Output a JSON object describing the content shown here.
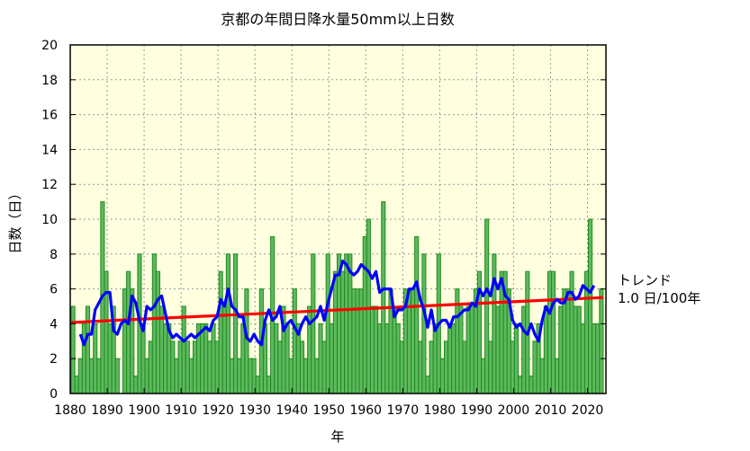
{
  "chart_data": {
    "type": "bar",
    "title": "京都の年間日降水量50mm以上日数",
    "xlabel": "年",
    "ylabel": "日数（日）",
    "xlim": [
      1880,
      2025
    ],
    "ylim": [
      0,
      20
    ],
    "xticks": [
      "1880",
      "1890",
      "1900",
      "1910",
      "1920",
      "1930",
      "1940",
      "1950",
      "1960",
      "1970",
      "1980",
      "1990",
      "2000",
      "2010",
      "2020"
    ],
    "yticks": [
      "0",
      "2",
      "4",
      "6",
      "8",
      "10",
      "12",
      "14",
      "16",
      "18",
      "20"
    ],
    "grid": true,
    "first_year": 1881,
    "values": [
      5,
      1,
      2,
      4,
      5,
      2,
      4,
      2,
      11,
      7,
      4,
      5,
      2,
      0,
      6,
      7,
      6,
      1,
      8,
      4,
      2,
      3,
      8,
      7,
      5,
      4,
      4,
      3,
      2,
      3,
      5,
      3,
      2,
      3,
      4,
      4,
      4,
      3,
      4,
      3,
      7,
      5,
      8,
      2,
      8,
      2,
      4,
      6,
      2,
      2,
      1,
      6,
      4,
      1,
      9,
      4,
      3,
      5,
      4,
      2,
      6,
      4,
      3,
      2,
      5,
      8,
      2,
      4,
      3,
      8,
      4,
      7,
      8,
      7,
      8,
      8,
      6,
      6,
      6,
      9,
      10,
      5,
      5,
      4,
      11,
      4,
      6,
      5,
      4,
      3,
      6,
      6,
      6,
      9,
      3,
      8,
      1,
      3,
      4,
      8,
      2,
      3,
      4,
      4,
      6,
      5,
      3,
      5,
      5,
      6,
      7,
      2,
      10,
      3,
      8,
      5,
      7,
      7,
      6,
      3,
      4,
      1,
      5,
      7,
      1,
      3,
      4,
      2,
      5,
      7,
      7,
      2,
      5,
      6,
      6,
      7,
      5,
      5,
      4,
      7,
      10,
      4,
      4,
      6
    ],
    "running_mean_window": 5,
    "trend": {
      "label": "トレンド",
      "value_text": "1.0 日/100年"
    },
    "colors": {
      "bar_fill": "#5fb85f",
      "bar_stroke": "#1e8c1e",
      "running_mean": "#0000ff",
      "trend": "#ff0000",
      "plot_background": "#ffffe0",
      "grid": "#999999"
    }
  }
}
